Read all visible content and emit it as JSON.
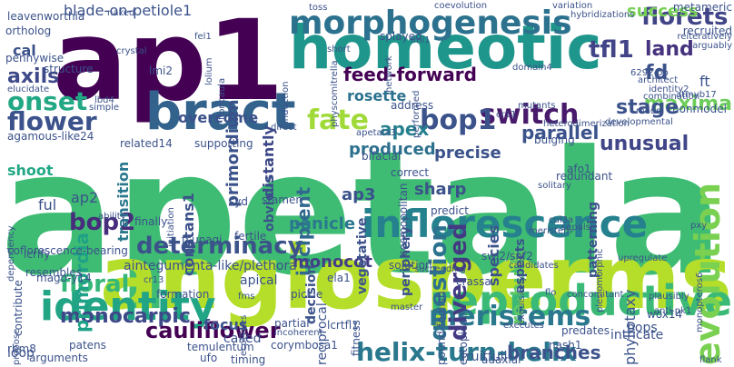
{
  "words": [
    {
      "text": "apetala1",
      "color": "#3fbc73"
    },
    {
      "text": "angiosperms",
      "color": "#b5de2b"
    },
    {
      "text": "ap1",
      "color": "#440154"
    },
    {
      "text": "homeotic",
      "color": "#1f968b"
    },
    {
      "text": "bract",
      "color": "#33638d"
    },
    {
      "text": "reproductive",
      "color": "#3aba76"
    },
    {
      "text": "inflorescence",
      "color": "#26818e"
    },
    {
      "text": "identity",
      "color": "#21a585"
    },
    {
      "text": "morphogenesis",
      "color": "#2c728e"
    },
    {
      "text": "evolution",
      "color": "#7ad151"
    },
    {
      "text": "determinacy",
      "color": "#3b528b"
    },
    {
      "text": "switch",
      "color": "#481a6c"
    },
    {
      "text": "flower",
      "color": "#3b528b"
    },
    {
      "text": "fate",
      "color": "#a0da39"
    },
    {
      "text": "onset",
      "color": "#22a884"
    },
    {
      "text": "florets",
      "color": "#414487"
    },
    {
      "text": "meristems",
      "color": "#2a788e"
    },
    {
      "text": "bop1",
      "color": "#3b528b"
    },
    {
      "text": "question",
      "color": "#2c728e"
    },
    {
      "text": "diverged",
      "color": "#443983"
    },
    {
      "text": "bop2",
      "color": "#472d7b"
    },
    {
      "text": "floral",
      "color": "#35b779"
    },
    {
      "text": "helix-turn-helix",
      "color": "#2a788e"
    },
    {
      "text": "tfl1",
      "color": "#414487"
    },
    {
      "text": "maxima",
      "color": "#6ccd5a"
    },
    {
      "text": "unusual",
      "color": "#404688"
    },
    {
      "text": "monocarpic",
      "color": "#3e4989"
    },
    {
      "text": "primordia",
      "color": "#1fa187"
    },
    {
      "text": "stage",
      "color": "#3b528b"
    },
    {
      "text": "apex",
      "color": "#27808e"
    },
    {
      "text": "parallel",
      "color": "#3b528b"
    },
    {
      "text": "produced",
      "color": "#2d708e"
    },
    {
      "text": "precise",
      "color": "#3b528b"
    },
    {
      "text": "cauliflower",
      "color": "#440154"
    },
    {
      "text": "land",
      "color": "#46337e"
    },
    {
      "text": "fd",
      "color": "#3b528b"
    },
    {
      "text": "success",
      "color": "#75d054"
    },
    {
      "text": "re-built",
      "color": "#5ec962"
    },
    {
      "text": "feed-forward",
      "color": "#440154"
    },
    {
      "text": "rosette",
      "color": "#2c728e"
    },
    {
      "text": "branches",
      "color": "#3b528b"
    },
    {
      "text": "incipient",
      "color": "#31688e"
    },
    {
      "text": "primordium",
      "color": "#3b528b"
    },
    {
      "text": "distantly",
      "color": "#3e4989"
    },
    {
      "text": "transition",
      "color": "#2a788e"
    },
    {
      "text": "axils",
      "color": "#3e4989"
    },
    {
      "text": "cal",
      "color": "#3b528b"
    },
    {
      "text": "overcome",
      "color": "#3b528b"
    },
    {
      "text": "shoot",
      "color": "#22a884"
    },
    {
      "text": "panicle",
      "color": "#2a788e"
    },
    {
      "text": "monocot",
      "color": "#433e85"
    },
    {
      "text": "ap3",
      "color": "#3b528b"
    },
    {
      "text": "sharp",
      "color": "#3b528b"
    },
    {
      "text": "species",
      "color": "#3b528b"
    },
    {
      "text": "vegetative",
      "color": "#3b528b"
    },
    {
      "text": "decision",
      "color": "#3b528b"
    },
    {
      "text": "obvious",
      "color": "#3b528b"
    },
    {
      "text": "constans1",
      "color": "#3b528b"
    },
    {
      "text": "periphery",
      "color": "#3b528b"
    },
    {
      "text": "aspects",
      "color": "#3b528b"
    },
    {
      "text": "patterning",
      "color": "#3b528b"
    },
    {
      "text": "focus",
      "color": "#3b528b"
    },
    {
      "text": "blade-on-petiole1",
      "color": "#3b528b"
    },
    {
      "text": "leavenworthia",
      "color": "#3b528b"
    },
    {
      "text": "aintegumenta-like/plethora",
      "color": "#3b528b"
    },
    {
      "text": "agamous-like24",
      "color": "#3b528b"
    },
    {
      "text": "coflorescence-bearing",
      "color": "#3b528b"
    },
    {
      "text": "fruitfull",
      "color": "#3b528b"
    },
    {
      "text": "phyllotaxy",
      "color": "#3b528b"
    },
    {
      "text": "ft",
      "color": "#3b528b"
    },
    {
      "text": "atmyb17",
      "color": "#3b528b"
    },
    {
      "text": "tsunagi",
      "color": "#3b528b"
    },
    {
      "text": "bops",
      "color": "#3b528b"
    },
    {
      "text": "ful",
      "color": "#3b528b"
    },
    {
      "text": "ap2",
      "color": "#3b528b"
    },
    {
      "text": "apical",
      "color": "#3b528b"
    },
    {
      "text": "loop",
      "color": "#3b528b"
    },
    {
      "text": "temulentum",
      "color": "#3b528b"
    },
    {
      "text": "called",
      "color": "#3b528b"
    },
    {
      "text": "corymbosa1",
      "color": "#3b528b"
    },
    {
      "text": "fitness",
      "color": "#3b528b"
    },
    {
      "text": "reciprocal",
      "color": "#3b528b"
    },
    {
      "text": "contribute",
      "color": "#3b528b"
    },
    {
      "text": "resembles",
      "color": "#3b528b"
    },
    {
      "text": "patens",
      "color": "#3b528b"
    },
    {
      "text": "rbm8",
      "color": "#3b528b"
    },
    {
      "text": "propose",
      "color": "#3b528b"
    },
    {
      "text": "stamen",
      "color": "#3b528b"
    },
    {
      "text": "finally",
      "color": "#3b528b"
    },
    {
      "text": "fertile",
      "color": "#3b528b"
    },
    {
      "text": "cosmopolitan",
      "color": "#3b528b"
    },
    {
      "text": "afo1",
      "color": "#3b528b"
    },
    {
      "text": "redundant",
      "color": "#3b528b"
    },
    {
      "text": "bulging",
      "color": "#3b528b"
    },
    {
      "text": "nonmodel",
      "color": "#3b528b"
    },
    {
      "text": "developmental",
      "color": "#3b528b"
    },
    {
      "text": "intricate",
      "color": "#3b528b"
    },
    {
      "text": "adaxial",
      "color": "#3b528b"
    },
    {
      "text": "nash1",
      "color": "#3b528b"
    },
    {
      "text": "predates",
      "color": "#3b528b"
    },
    {
      "text": "wox14",
      "color": "#3b528b"
    },
    {
      "text": "ectopically",
      "color": "#3b528b"
    },
    {
      "text": "pound-foolish",
      "color": "#3b528b"
    },
    {
      "text": "lcrtfl1",
      "color": "#3b528b"
    },
    {
      "text": "partial",
      "color": "#3b528b"
    },
    {
      "text": "incoherent",
      "color": "#3b528b"
    },
    {
      "text": "ela1",
      "color": "#3b528b"
    },
    {
      "text": "pickle",
      "color": "#3b528b"
    },
    {
      "text": "ufo",
      "color": "#3b528b"
    },
    {
      "text": "timing",
      "color": "#3b528b"
    },
    {
      "text": "solution",
      "color": "#3b528b"
    },
    {
      "text": "swi2/snf2",
      "color": "#3b528b"
    },
    {
      "text": "candidates",
      "color": "#3b528b"
    },
    {
      "text": "upregulate",
      "color": "#3b528b"
    },
    {
      "text": "plesiomorphic",
      "color": "#3b528b"
    },
    {
      "text": "cul3a",
      "color": "#3b528b"
    },
    {
      "text": "sepals",
      "color": "#3b528b"
    },
    {
      "text": "flank",
      "color": "#3b528b"
    },
    {
      "text": "metameric",
      "color": "#3b528b"
    },
    {
      "text": "recruited",
      "color": "#3b528b"
    },
    {
      "text": "reiteratively",
      "color": "#3b528b"
    },
    {
      "text": "arguably",
      "color": "#3b528b"
    },
    {
      "text": "architect",
      "color": "#3b528b"
    },
    {
      "text": "identity2",
      "color": "#3b528b"
    },
    {
      "text": "6292-bp",
      "color": "#3b528b"
    },
    {
      "text": "combination",
      "color": "#3b528b"
    },
    {
      "text": "heterodimerization",
      "color": "#3b528b"
    },
    {
      "text": "mads",
      "color": "#3b528b"
    },
    {
      "text": "structure",
      "color": "#3b528b"
    },
    {
      "text": "crystal",
      "color": "#3b528b"
    },
    {
      "text": "lmi2",
      "color": "#3b528b"
    },
    {
      "text": "ortholog",
      "color": "#3b528b"
    },
    {
      "text": "pennywise",
      "color": "#3b528b"
    },
    {
      "text": "elucidate",
      "color": "#3b528b"
    },
    {
      "text": "simple",
      "color": "#3b528b"
    },
    {
      "text": "lbd4",
      "color": "#3b528b"
    },
    {
      "text": "related14",
      "color": "#3b528b"
    },
    {
      "text": "supporting",
      "color": "#3b528b"
    },
    {
      "text": "bifacial",
      "color": "#3b528b"
    },
    {
      "text": "address",
      "color": "#3b528b"
    },
    {
      "text": "splayed",
      "color": "#3b528b"
    },
    {
      "text": "lmi1",
      "color": "#3b528b"
    },
    {
      "text": "naked",
      "color": "#3b528b"
    },
    {
      "text": "fel1",
      "color": "#3b528b"
    },
    {
      "text": "solitary",
      "color": "#3b528b"
    },
    {
      "text": "correct",
      "color": "#3b528b"
    },
    {
      "text": "predict",
      "color": "#3b528b"
    },
    {
      "text": "syd",
      "color": "#3b528b"
    },
    {
      "text": "crassa",
      "color": "#3b528b"
    },
    {
      "text": "ability",
      "color": "#3b528b"
    },
    {
      "text": "initiation",
      "color": "#3b528b"
    },
    {
      "text": "formation",
      "color": "#3b528b"
    },
    {
      "text": "mago-y14",
      "color": "#3b528b"
    },
    {
      "text": "cr13",
      "color": "#3b528b"
    },
    {
      "text": "lcrlfy",
      "color": "#3b528b"
    },
    {
      "text": "arguments",
      "color": "#3b528b"
    },
    {
      "text": "dependency",
      "color": "#3b528b"
    },
    {
      "text": "succeeding",
      "color": "#3b528b"
    },
    {
      "text": "master",
      "color": "#3b528b"
    },
    {
      "text": "executes",
      "color": "#3b528b"
    },
    {
      "text": "concomitant",
      "color": "#3b528b"
    },
    {
      "text": "plausibly",
      "color": "#3b528b"
    },
    {
      "text": "flo",
      "color": "#3b528b"
    },
    {
      "text": "pxy",
      "color": "#3b528b"
    },
    {
      "text": "variation",
      "color": "#3b528b"
    },
    {
      "text": "hybridizations",
      "color": "#3b528b"
    },
    {
      "text": "coevolution",
      "color": "#3b528b"
    },
    {
      "text": "toss",
      "color": "#3b528b"
    },
    {
      "text": "lolium",
      "color": "#3b528b"
    },
    {
      "text": "floricaula",
      "color": "#3b528b"
    },
    {
      "text": "physcomitrella",
      "color": "#3b528b"
    },
    {
      "text": "network",
      "color": "#3b528b"
    },
    {
      "text": "performed",
      "color": "#3b528b"
    },
    {
      "text": "domain4",
      "color": "#3b528b"
    },
    {
      "text": "apetala3",
      "color": "#3b528b"
    },
    {
      "text": "mutants",
      "color": "#3b528b"
    },
    {
      "text": "induction",
      "color": "#3b528b"
    },
    {
      "text": "meristem",
      "color": "#3b528b"
    },
    {
      "text": "exquisitely",
      "color": "#3b528b"
    },
    {
      "text": "cr11",
      "color": "#3b528b"
    },
    {
      "text": "monopteros6",
      "color": "#3b528b"
    },
    {
      "text": "anti-pk1",
      "color": "#3b528b"
    },
    {
      "text": "direct",
      "color": "#3b528b"
    },
    {
      "text": "short",
      "color": "#3b528b"
    },
    {
      "text": "ecotypes",
      "color": "#3b528b"
    },
    {
      "text": "fms",
      "color": "#3b528b"
    }
  ]
}
